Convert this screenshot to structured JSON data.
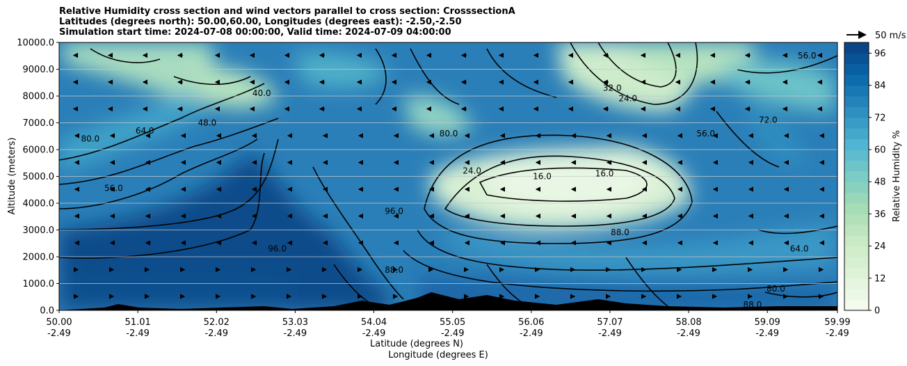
{
  "title_lines": [
    "Relative Humidity cross section and wind vectors parallel to cross section: CrosssectionA",
    "Latitudes (degrees north): 50.00,60.00, Longitudes (degrees east): -2.50,-2.50",
    "Simulation start time: 2024-07-08 00:00:00, Valid time: 2024-07-09 04:00:00"
  ],
  "chart_data": {
    "type": "heatmap",
    "ylabel": "Altitude (meters)",
    "xlabel_lines": [
      "Latitude (degrees N)",
      "Longitude (degrees E)"
    ],
    "x_ticks": [
      {
        "lat": "50.00",
        "lon": "-2.49"
      },
      {
        "lat": "51.01",
        "lon": "-2.49"
      },
      {
        "lat": "52.02",
        "lon": "-2.49"
      },
      {
        "lat": "53.03",
        "lon": "-2.49"
      },
      {
        "lat": "54.04",
        "lon": "-2.49"
      },
      {
        "lat": "55.05",
        "lon": "-2.49"
      },
      {
        "lat": "56.06",
        "lon": "-2.49"
      },
      {
        "lat": "57.07",
        "lon": "-2.49"
      },
      {
        "lat": "58.08",
        "lon": "-2.49"
      },
      {
        "lat": "59.09",
        "lon": "-2.49"
      },
      {
        "lat": "59.99",
        "lon": "-2.49"
      }
    ],
    "xlim": [
      50.0,
      59.99
    ],
    "y_ticks": [
      "0.0",
      "1000.0",
      "2000.0",
      "3000.0",
      "4000.0",
      "5000.0",
      "6000.0",
      "7000.0",
      "8000.0",
      "9000.0",
      "10000.0"
    ],
    "ylim": [
      0,
      10000
    ],
    "grid": "horizontal",
    "colorbar": {
      "label": "Relative Humidity %",
      "ticks": [
        "0",
        "12",
        "24",
        "36",
        "48",
        "60",
        "72",
        "84",
        "96"
      ],
      "range": [
        0,
        100
      ],
      "colormap": "GnBu"
    },
    "wind_key": {
      "label": "50 m/s"
    },
    "contour_labels": [
      {
        "text": "56.0",
        "lat": 50.7,
        "alt": 4450
      },
      {
        "text": "80.0",
        "lat": 50.4,
        "alt": 6300
      },
      {
        "text": "64.0",
        "lat": 51.1,
        "alt": 6600
      },
      {
        "text": "40.0",
        "lat": 52.6,
        "alt": 8000
      },
      {
        "text": "48.0",
        "lat": 51.9,
        "alt": 6900
      },
      {
        "text": "96.0",
        "lat": 52.8,
        "alt": 2200
      },
      {
        "text": "96.0",
        "lat": 54.3,
        "alt": 3600
      },
      {
        "text": "88.0",
        "lat": 54.3,
        "alt": 1400
      },
      {
        "text": "80.0",
        "lat": 55.0,
        "alt": 6500
      },
      {
        "text": "24.0",
        "lat": 55.3,
        "alt": 5100
      },
      {
        "text": "16.0",
        "lat": 56.2,
        "alt": 4900
      },
      {
        "text": "16.0",
        "lat": 57.0,
        "alt": 5000
      },
      {
        "text": "24.0",
        "lat": 57.3,
        "alt": 7800
      },
      {
        "text": "32.0",
        "lat": 57.1,
        "alt": 8200
      },
      {
        "text": "56.0",
        "lat": 58.3,
        "alt": 6500
      },
      {
        "text": "88.0",
        "lat": 57.2,
        "alt": 2800
      },
      {
        "text": "64.0",
        "lat": 59.5,
        "alt": 2200
      },
      {
        "text": "56.0",
        "lat": 59.6,
        "alt": 9400
      },
      {
        "text": "72.0",
        "lat": 59.1,
        "alt": 7000
      },
      {
        "text": "80.0",
        "lat": 59.2,
        "alt": 700
      },
      {
        "text": "88.0",
        "lat": 58.9,
        "alt": 100
      }
    ]
  }
}
